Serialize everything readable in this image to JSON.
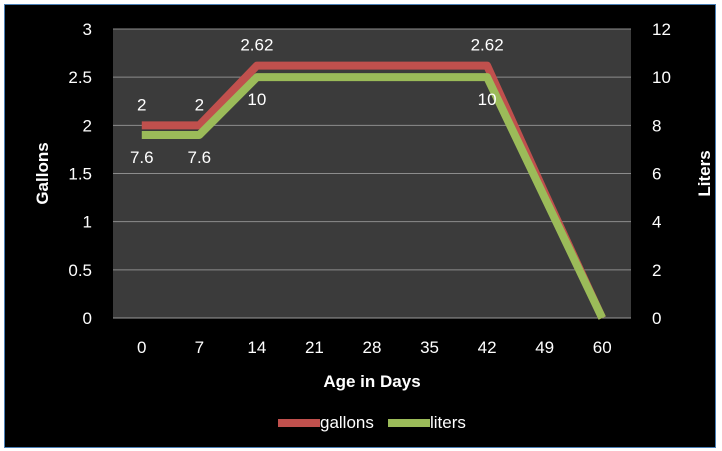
{
  "chart_data": {
    "type": "line",
    "title": "",
    "xlabel": "Age in Days",
    "ylabel": "Gallons",
    "y2label": "Liters",
    "categories": [
      "0",
      "7",
      "14",
      "21",
      "28",
      "35",
      "42",
      "49",
      "60"
    ],
    "ylim": [
      0,
      3
    ],
    "y2lim": [
      0,
      12
    ],
    "yticks": [
      "0",
      "0.5",
      "1",
      "1.5",
      "2",
      "2.5",
      "3"
    ],
    "y2ticks": [
      "0",
      "2",
      "4",
      "6",
      "8",
      "10",
      "12"
    ],
    "grid": true,
    "legend_position": "bottom",
    "series": [
      {
        "name": "gallons",
        "axis": "left",
        "color": "#c0504d",
        "values": [
          2,
          2,
          2.62,
          2.62,
          2.62,
          2.62,
          2.62,
          1.3,
          0
        ],
        "data_labels": [
          {
            "index": 0,
            "text": "2"
          },
          {
            "index": 1,
            "text": "2"
          },
          {
            "index": 2,
            "text": "2.62"
          },
          {
            "index": 6,
            "text": "2.62"
          }
        ]
      },
      {
        "name": "liters",
        "axis": "right",
        "color": "#9bbb59",
        "values": [
          7.6,
          7.6,
          10,
          10,
          10,
          10,
          10,
          5,
          0
        ],
        "data_labels": [
          {
            "index": 0,
            "text": "7.6"
          },
          {
            "index": 1,
            "text": "7.6"
          },
          {
            "index": 2,
            "text": "10"
          },
          {
            "index": 6,
            "text": "10"
          }
        ]
      }
    ]
  },
  "colors": {
    "background": "#000000",
    "plot_area": "#3b3b3b",
    "gridline": "#8c8c8c",
    "border": "#4a7fb5"
  }
}
